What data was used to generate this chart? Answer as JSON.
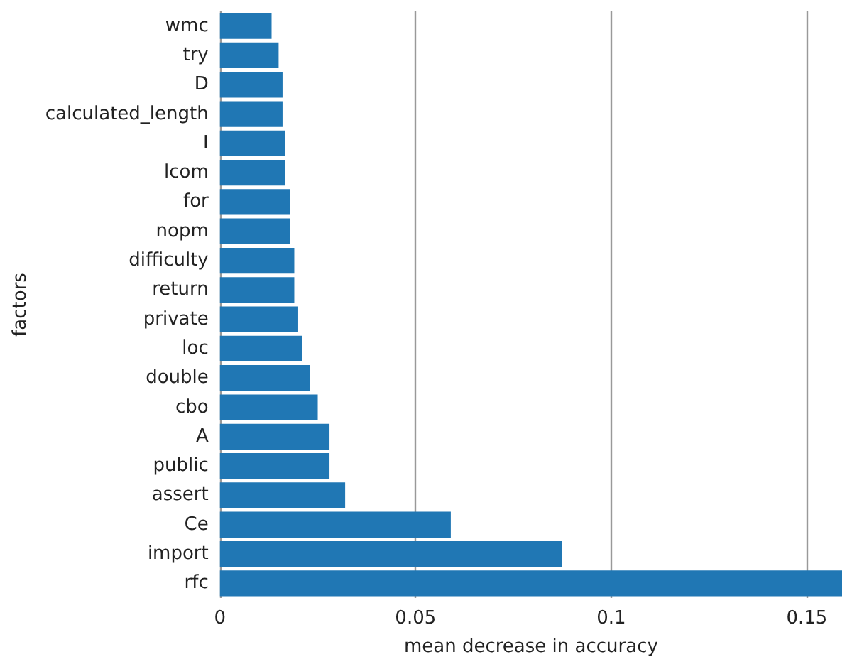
{
  "chart_data": {
    "type": "bar",
    "orientation": "horizontal",
    "xlabel": "mean decrease in accuracy",
    "ylabel": "factors",
    "categories": [
      "wmc",
      "try",
      "D",
      "calculated_length",
      "I",
      "lcom",
      "for",
      "nopm",
      "difficulty",
      "return",
      "private",
      "loc",
      "double",
      "cbo",
      "A",
      "public",
      "assert",
      "Ce",
      "import",
      "rfc"
    ],
    "values": [
      0.0132,
      0.015,
      0.016,
      0.016,
      0.0167,
      0.0167,
      0.018,
      0.018,
      0.019,
      0.019,
      0.02,
      0.021,
      0.023,
      0.025,
      0.028,
      0.028,
      0.032,
      0.059,
      0.0875,
      0.159
    ],
    "color": "#2077b4",
    "xlim": [
      0,
      0.159
    ],
    "xticks": [
      0,
      0.05,
      0.1,
      0.15
    ],
    "grid": "x"
  }
}
